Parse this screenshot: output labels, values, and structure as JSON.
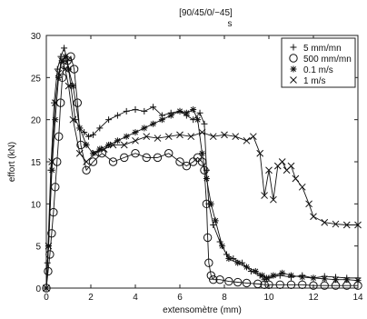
{
  "chart_data": {
    "type": "line",
    "title": "[90/45/0/−45]",
    "title_subscript": "s",
    "xlabel": "extensomètre (mm)",
    "ylabel": "effort (kN)",
    "xlim": [
      0,
      14
    ],
    "ylim": [
      0,
      30
    ],
    "xticks": [
      0,
      2,
      4,
      6,
      8,
      10,
      12,
      14
    ],
    "yticks": [
      0,
      5,
      10,
      15,
      20,
      25,
      30
    ],
    "grid": false,
    "legend_position": "top-right",
    "series": [
      {
        "name": "5 mm/mn",
        "marker": "plus",
        "x": [
          0,
          0.05,
          0.2,
          0.35,
          0.5,
          0.65,
          0.8,
          0.95,
          1.1,
          1.3,
          1.5,
          1.7,
          1.9,
          2.1,
          2.4,
          2.8,
          3.2,
          3.6,
          4.0,
          4.4,
          4.8,
          5.2,
          5.6,
          6.0,
          6.3,
          6.6,
          6.9,
          7.1,
          7.2,
          7.3,
          7.5,
          7.8,
          8.1,
          8.4,
          8.8,
          9.2,
          9.6,
          9.8,
          10.0,
          10.5,
          11.0,
          11.5,
          12.0,
          12.5,
          13.0,
          13.5,
          14.0
        ],
        "y": [
          0,
          3,
          14,
          22,
          26,
          27.5,
          28.5,
          27,
          24,
          20,
          19,
          18.5,
          18,
          18.2,
          19,
          20,
          20.5,
          21,
          21.2,
          21,
          21.5,
          20.5,
          20.8,
          21,
          20.5,
          20,
          20.8,
          19.5,
          14,
          10,
          7.5,
          5.5,
          4,
          3.5,
          3,
          2,
          1.5,
          1,
          1.2,
          1.5,
          1.3,
          1.5,
          1.2,
          1.4,
          1.3,
          1.2,
          1.2
        ]
      },
      {
        "name": "500 mm/mn",
        "marker": "circle",
        "x": [
          0,
          0.08,
          0.16,
          0.24,
          0.32,
          0.4,
          0.48,
          0.56,
          0.64,
          0.72,
          0.8,
          0.95,
          1.1,
          1.25,
          1.4,
          1.55,
          1.8,
          2.1,
          2.5,
          3.0,
          3.5,
          4.0,
          4.5,
          5.0,
          5.5,
          6.0,
          6.3,
          6.6,
          6.8,
          7.0,
          7.1,
          7.2,
          7.25,
          7.3,
          7.4,
          7.5,
          7.8,
          8.2,
          8.6,
          9.0,
          9.5,
          9.8,
          10.0,
          10.5,
          11.0,
          11.5,
          12.0,
          12.5,
          13.0,
          13.5,
          14.0
        ],
        "y": [
          0,
          2,
          4,
          6.5,
          9,
          12,
          15,
          18,
          22,
          25,
          26.5,
          27,
          27.5,
          26,
          22,
          17,
          14,
          15,
          16,
          15,
          15.5,
          16,
          15.5,
          15.5,
          16,
          15,
          14.5,
          15,
          15.5,
          15,
          14,
          10,
          6,
          3,
          1.5,
          1,
          1,
          0.8,
          0.7,
          0.6,
          0.5,
          0.4,
          0.4,
          0.4,
          0.4,
          0.4,
          0.3,
          0.3,
          0.3,
          0.3,
          0.3
        ]
      },
      {
        "name": "0.1 m/s",
        "marker": "star",
        "x": [
          0,
          0.1,
          0.25,
          0.4,
          0.55,
          0.7,
          0.85,
          1.0,
          1.2,
          1.5,
          1.8,
          2.1,
          2.4,
          2.8,
          3.2,
          3.6,
          4.0,
          4.4,
          4.8,
          5.2,
          5.6,
          6.0,
          6.3,
          6.6,
          6.8,
          7.0,
          7.2,
          7.4,
          7.6,
          7.9,
          8.2,
          8.6,
          9.0,
          9.4,
          9.7,
          9.9,
          10.2,
          10.6,
          11.0,
          11.5,
          12.0,
          12.5,
          13.0,
          13.5,
          14.0
        ],
        "y": [
          0,
          5,
          14,
          20,
          25,
          27,
          27.5,
          26,
          24,
          19,
          17,
          16,
          16.5,
          17,
          17.5,
          18,
          18.5,
          19,
          19.5,
          20,
          20.5,
          21,
          20.8,
          21.2,
          20,
          16,
          13,
          10,
          8,
          5,
          3.5,
          3,
          2.5,
          2,
          1.5,
          1.2,
          1.5,
          1.8,
          1.5,
          1.3,
          1.2,
          1.1,
          1.0,
          1.0,
          0.9
        ]
      },
      {
        "name": "1 m/s",
        "marker": "cross",
        "x": [
          0,
          0.1,
          0.25,
          0.4,
          0.55,
          0.7,
          0.85,
          1.0,
          1.2,
          1.5,
          1.8,
          2.2,
          2.6,
          3.0,
          3.5,
          4.0,
          4.5,
          5.0,
          5.5,
          6.0,
          6.5,
          7.0,
          7.5,
          8.0,
          8.5,
          9.0,
          9.3,
          9.6,
          9.8,
          10.0,
          10.2,
          10.4,
          10.6,
          10.8,
          11.0,
          11.2,
          11.5,
          11.8,
          12.0,
          12.5,
          13.0,
          13.5,
          14.0
        ],
        "y": [
          0,
          5,
          15,
          22,
          25.5,
          27,
          26,
          24,
          20,
          16,
          15,
          16,
          16.5,
          17,
          17,
          17.5,
          18,
          17.8,
          18,
          18.2,
          18,
          18.5,
          18,
          18.2,
          18,
          17.5,
          18,
          16,
          11,
          14,
          10.5,
          14.5,
          15,
          14,
          14.5,
          13,
          12,
          10,
          8.5,
          7.8,
          7.6,
          7.5,
          7.5
        ]
      }
    ]
  }
}
